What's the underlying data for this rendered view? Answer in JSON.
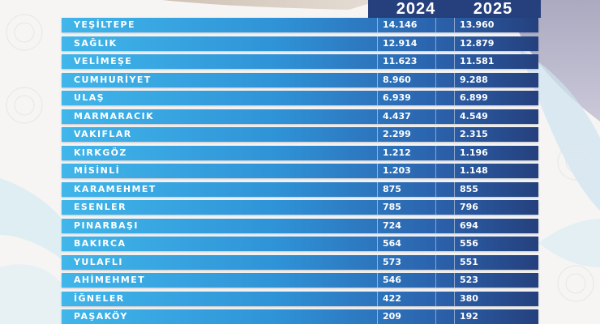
{
  "colors": {
    "header": "#25407d",
    "bar_light": "#40b6ea",
    "bar_dark": "#25407d",
    "text": "#ffffff"
  },
  "chart_data": {
    "type": "table",
    "columns": [
      "2024",
      "2025"
    ],
    "rows": [
      {
        "name": "YEŞİLTEPE",
        "v2024": "14.146",
        "v2025": "13.960"
      },
      {
        "name": "SAĞLIK",
        "v2024": "12.914",
        "v2025": "12.879"
      },
      {
        "name": "VELİMEŞE",
        "v2024": "11.623",
        "v2025": "11.581"
      },
      {
        "name": "CUMHURİYET",
        "v2024": "8.960",
        "v2025": "9.288"
      },
      {
        "name": "ULAŞ",
        "v2024": "6.939",
        "v2025": "6.899"
      },
      {
        "name": "MARMARACIK",
        "v2024": "4.437",
        "v2025": "4.549"
      },
      {
        "name": "VAKIFLAR",
        "v2024": "2.299",
        "v2025": "2.315"
      },
      {
        "name": "KIRKGÖZ",
        "v2024": "1.212",
        "v2025": "1.196"
      },
      {
        "name": "MİSİNLİ",
        "v2024": "1.203",
        "v2025": "1.148"
      },
      {
        "name": "KARAMEHMET",
        "v2024": "875",
        "v2025": "855"
      },
      {
        "name": "ESENLER",
        "v2024": "785",
        "v2025": "796"
      },
      {
        "name": "PINARBAŞI",
        "v2024": "724",
        "v2025": "694"
      },
      {
        "name": "BAKIRCA",
        "v2024": "564",
        "v2025": "556"
      },
      {
        "name": "YULAFLI",
        "v2024": "573",
        "v2025": "551"
      },
      {
        "name": "AHİMEHMET",
        "v2024": "546",
        "v2025": "523"
      },
      {
        "name": "İĞNELER",
        "v2024": "422",
        "v2025": "380"
      },
      {
        "name": "PAŞAKÖY",
        "v2024": "209",
        "v2025": "192"
      }
    ]
  }
}
